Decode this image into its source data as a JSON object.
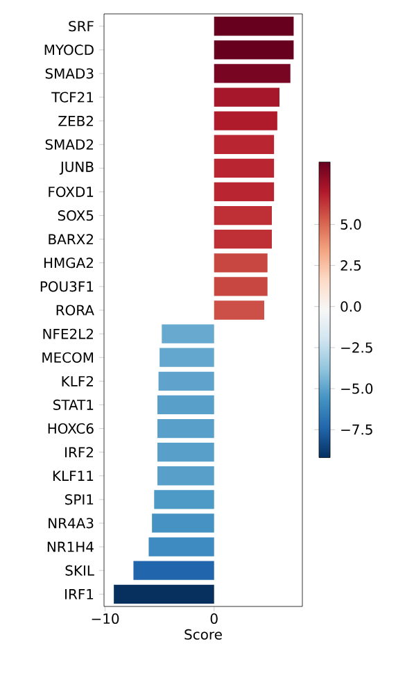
{
  "chart_data": {
    "type": "bar",
    "orientation": "horizontal",
    "xlabel": "Score",
    "categories": [
      "SRF",
      "MYOCD",
      "SMAD3",
      "TCF21",
      "ZEB2",
      "SMAD2",
      "JUNB",
      "FOXD1",
      "SOX5",
      "BARX2",
      "HMGA2",
      "POU3F1",
      "RORA",
      "NFE2L2",
      "MECOM",
      "KLF2",
      "STAT1",
      "HOXC6",
      "IRF2",
      "KLF11",
      "SPI1",
      "NR4A3",
      "NR1H4",
      "SKIL",
      "IRF1"
    ],
    "values": [
      7.3,
      7.3,
      7.0,
      6.0,
      5.8,
      5.5,
      5.5,
      5.5,
      5.3,
      5.3,
      4.9,
      4.9,
      4.6,
      -4.8,
      -5.0,
      -5.1,
      -5.2,
      -5.2,
      -5.2,
      -5.2,
      -5.5,
      -5.7,
      -6.0,
      -7.4,
      -9.2
    ],
    "colors": [
      "#67001f",
      "#67001f",
      "#780522",
      "#a6172b",
      "#b01b2c",
      "#b92631",
      "#b92631",
      "#b92631",
      "#bf3036",
      "#bf3036",
      "#c94741",
      "#c94741",
      "#cc5048",
      "#67a9cf",
      "#63a6ce",
      "#5fa3cc",
      "#58a0ca",
      "#58a0ca",
      "#58a0ca",
      "#58a0ca",
      "#4e9ac6",
      "#4592c3",
      "#3d8bc0",
      "#2166ac",
      "#08305e"
    ],
    "xlim": [
      -10.1,
      8.1
    ],
    "xticks": [
      {
        "value": -10,
        "label": "−10"
      },
      0
    ],
    "clim": [
      -9.2,
      8.8
    ],
    "cticks": [
      {
        "value": -7.5,
        "label": "−7.5"
      },
      {
        "value": -5,
        "label": "−5.0"
      },
      {
        "value": -2.5,
        "label": "−2.5"
      },
      {
        "value": 0,
        "label": "0.0"
      },
      {
        "value": 2.5,
        "label": "2.5"
      },
      {
        "value": 5,
        "label": "5.0"
      }
    ],
    "grid": false
  }
}
